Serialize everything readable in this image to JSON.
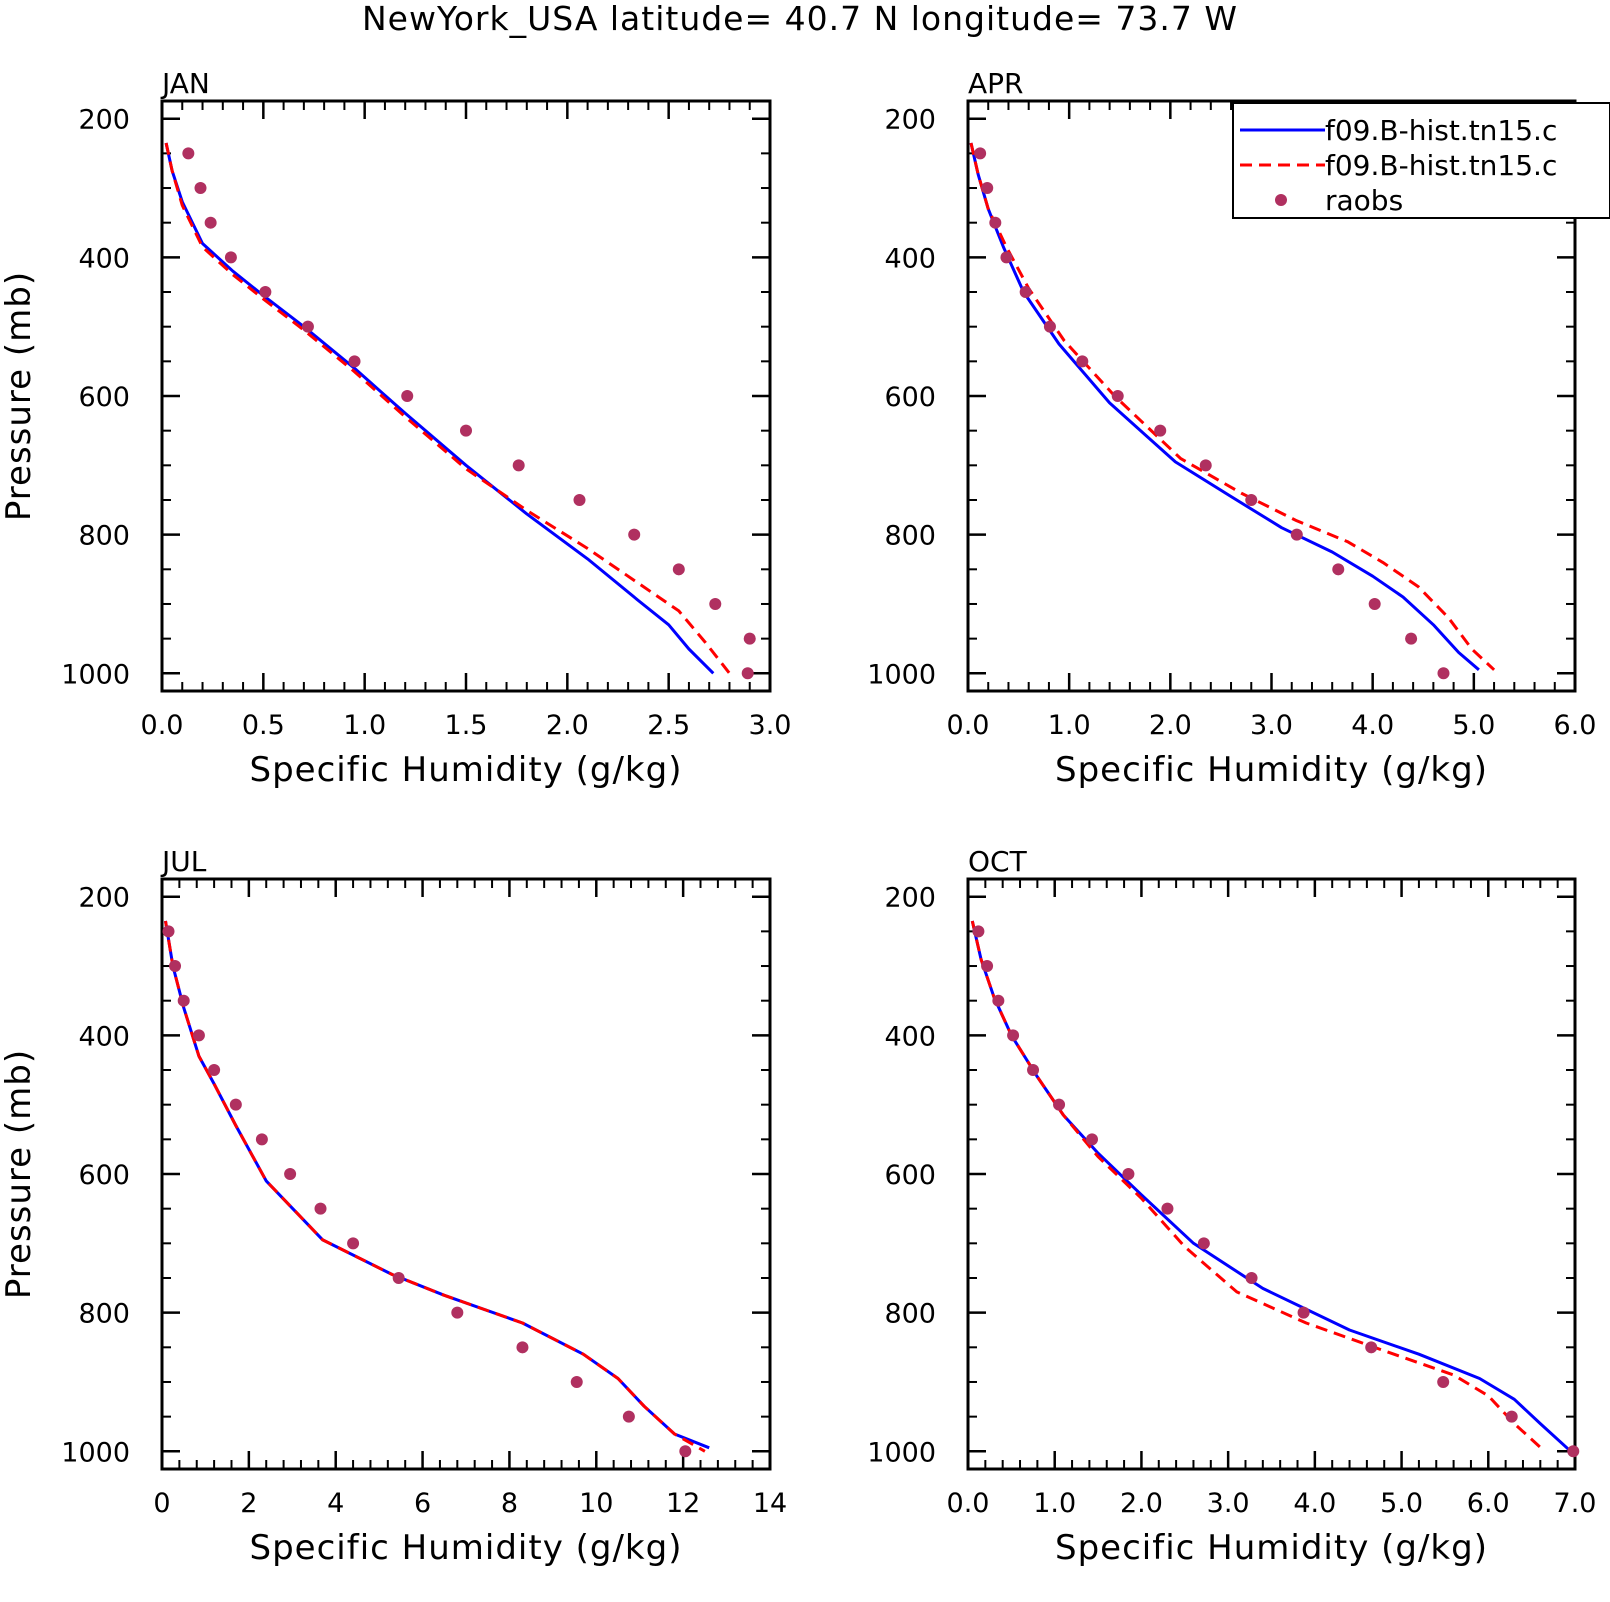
{
  "figure": {
    "title": "NewYork_USA  latitude= 40.7 N longitude= 73.7 W"
  },
  "legend": {
    "entries": [
      {
        "label": "f09.B-hist.tn15.c",
        "style": "solid",
        "color": "#0000ff"
      },
      {
        "label": "f09.B-hist.tn15.c",
        "style": "dashed",
        "color": "#ff0000"
      },
      {
        "label": "raobs",
        "style": "marker",
        "color": "#b03060"
      }
    ],
    "placement": "top-right"
  },
  "colors": {
    "series_solid": "#0000ff",
    "series_dashed": "#ff0000",
    "raobs": "#b03060",
    "axis": "#000000"
  },
  "chart_data": [
    {
      "type": "line",
      "title": "JAN",
      "xlabel": "Specific Humidity (g/kg)",
      "ylabel": "Pressure (mb)",
      "xlim": [
        0,
        3.0
      ],
      "ylim": [
        1000,
        200
      ],
      "y_inverted": true,
      "x_ticks": [
        "0.0",
        "0.5",
        "1.0",
        "1.5",
        "2.0",
        "2.5",
        "3.0"
      ],
      "y_ticks": [
        "200",
        "400",
        "600",
        "800",
        "1000"
      ],
      "series": [
        {
          "name": "f09.B-hist.tn15.c",
          "style": "solid",
          "x": [
            0.02,
            0.05,
            0.1,
            0.2,
            0.35,
            0.5,
            0.7,
            0.95,
            1.2,
            1.5,
            1.8,
            2.1,
            2.35,
            2.5,
            2.6,
            2.72
          ],
          "y": [
            235,
            275,
            320,
            380,
            420,
            455,
            500,
            560,
            625,
            700,
            770,
            835,
            895,
            930,
            965,
            1000
          ]
        },
        {
          "name": "f09.B-hist.tn15.c",
          "style": "dashed",
          "x": [
            0.02,
            0.05,
            0.1,
            0.2,
            0.35,
            0.5,
            0.7,
            0.95,
            1.2,
            1.5,
            1.8,
            2.1,
            2.35,
            2.55,
            2.68,
            2.8
          ],
          "y": [
            235,
            275,
            325,
            385,
            425,
            460,
            505,
            565,
            630,
            705,
            765,
            820,
            870,
            910,
            955,
            1000
          ]
        },
        {
          "name": "raobs",
          "style": "marker",
          "x": [
            0.13,
            0.19,
            0.24,
            0.34,
            0.51,
            0.72,
            0.95,
            1.21,
            1.5,
            1.76,
            2.06,
            2.33,
            2.55,
            2.73,
            2.9,
            2.89
          ],
          "y": [
            250,
            300,
            350,
            400,
            450,
            500,
            550,
            600,
            650,
            700,
            750,
            800,
            850,
            900,
            950,
            1000
          ]
        }
      ]
    },
    {
      "type": "line",
      "title": "APR",
      "xlabel": "Specific Humidity (g/kg)",
      "ylabel": "",
      "xlim": [
        0,
        6.0
      ],
      "ylim": [
        1000,
        200
      ],
      "y_inverted": true,
      "x_ticks": [
        "0.0",
        "1.0",
        "2.0",
        "3.0",
        "4.0",
        "5.0",
        "6.0"
      ],
      "y_ticks": [
        "200",
        "400",
        "600",
        "800",
        "1000"
      ],
      "series": [
        {
          "name": "f09.B-hist.tn15.c",
          "style": "solid",
          "x": [
            0.03,
            0.1,
            0.2,
            0.35,
            0.55,
            0.9,
            1.4,
            2.05,
            2.6,
            3.1,
            3.6,
            4.0,
            4.3,
            4.6,
            4.85,
            5.05
          ],
          "y": [
            235,
            280,
            330,
            385,
            450,
            525,
            610,
            695,
            745,
            790,
            825,
            860,
            890,
            930,
            970,
            995
          ]
        },
        {
          "name": "f09.B-hist.tn15.c",
          "style": "dashed",
          "x": [
            0.03,
            0.1,
            0.2,
            0.38,
            0.6,
            0.95,
            1.45,
            2.1,
            2.7,
            3.25,
            3.75,
            4.1,
            4.45,
            4.75,
            4.98,
            5.2
          ],
          "y": [
            235,
            280,
            330,
            385,
            445,
            520,
            600,
            690,
            740,
            780,
            810,
            840,
            875,
            920,
            965,
            995
          ]
        },
        {
          "name": "raobs",
          "style": "marker",
          "x": [
            0.12,
            0.19,
            0.27,
            0.38,
            0.57,
            0.81,
            1.13,
            1.48,
            1.9,
            2.35,
            2.8,
            3.25,
            3.66,
            4.02,
            4.38,
            4.7
          ],
          "y": [
            250,
            300,
            350,
            400,
            450,
            500,
            550,
            600,
            650,
            700,
            750,
            800,
            850,
            900,
            950,
            1000
          ]
        }
      ]
    },
    {
      "type": "line",
      "title": "JUL",
      "xlabel": "Specific Humidity (g/kg)",
      "ylabel": "Pressure (mb)",
      "xlim": [
        0,
        14
      ],
      "ylim": [
        1000,
        200
      ],
      "y_inverted": true,
      "x_ticks": [
        "0",
        "2",
        "4",
        "6",
        "8",
        "10",
        "12",
        "14"
      ],
      "y_ticks": [
        "200",
        "400",
        "600",
        "800",
        "1000"
      ],
      "series": [
        {
          "name": "f09.B-hist.tn15.c",
          "style": "solid",
          "x": [
            0.08,
            0.25,
            0.5,
            0.85,
            1.2,
            1.7,
            2.4,
            3.7,
            5.3,
            6.5,
            8.3,
            9.7,
            10.5,
            11.1,
            11.8,
            12.6
          ],
          "y": [
            235,
            300,
            360,
            430,
            470,
            530,
            610,
            695,
            745,
            775,
            815,
            860,
            895,
            935,
            975,
            995
          ]
        },
        {
          "name": "f09.B-hist.tn15.c",
          "style": "dashed",
          "x": [
            0.08,
            0.25,
            0.5,
            0.85,
            1.2,
            1.7,
            2.4,
            3.7,
            5.3,
            6.5,
            8.3,
            9.7,
            10.5,
            11.1,
            11.8,
            12.5
          ],
          "y": [
            235,
            300,
            360,
            430,
            470,
            530,
            610,
            695,
            745,
            775,
            815,
            860,
            895,
            935,
            975,
            1000
          ]
        },
        {
          "name": "raobs",
          "style": "marker",
          "x": [
            0.15,
            0.3,
            0.5,
            0.85,
            1.2,
            1.7,
            2.3,
            2.95,
            3.65,
            4.4,
            5.45,
            6.8,
            8.3,
            9.55,
            10.75,
            12.05
          ],
          "y": [
            250,
            300,
            350,
            400,
            450,
            500,
            550,
            600,
            650,
            700,
            750,
            800,
            850,
            900,
            950,
            1000
          ]
        }
      ]
    },
    {
      "type": "line",
      "title": "OCT",
      "xlabel": "Specific Humidity (g/kg)",
      "ylabel": "",
      "xlim": [
        0,
        7.0
      ],
      "ylim": [
        1000,
        200
      ],
      "y_inverted": true,
      "x_ticks": [
        "0.0",
        "1.0",
        "2.0",
        "3.0",
        "4.0",
        "5.0",
        "6.0",
        "7.0"
      ],
      "y_ticks": [
        "200",
        "400",
        "600",
        "800",
        "1000"
      ],
      "series": [
        {
          "name": "f09.B-hist.tn15.c",
          "style": "solid",
          "x": [
            0.05,
            0.15,
            0.3,
            0.5,
            0.8,
            1.1,
            1.5,
            2.0,
            2.6,
            3.4,
            4.4,
            5.2,
            5.9,
            6.3,
            6.6,
            6.95
          ],
          "y": [
            235,
            290,
            345,
            400,
            460,
            515,
            570,
            630,
            700,
            765,
            825,
            860,
            895,
            925,
            960,
            1000
          ]
        },
        {
          "name": "f09.B-hist.tn15.c",
          "style": "dashed",
          "x": [
            0.05,
            0.15,
            0.3,
            0.5,
            0.8,
            1.1,
            1.5,
            2.0,
            2.5,
            3.1,
            3.9,
            4.8,
            5.6,
            6.0,
            6.3,
            6.65
          ],
          "y": [
            235,
            290,
            345,
            400,
            460,
            515,
            575,
            635,
            705,
            770,
            815,
            855,
            890,
            920,
            960,
            1000
          ]
        },
        {
          "name": "raobs",
          "style": "marker",
          "x": [
            0.12,
            0.22,
            0.35,
            0.52,
            0.75,
            1.05,
            1.43,
            1.85,
            2.3,
            2.72,
            3.27,
            3.87,
            4.65,
            5.48,
            6.27,
            6.98
          ],
          "y": [
            250,
            300,
            350,
            400,
            450,
            500,
            550,
            600,
            650,
            700,
            750,
            800,
            850,
            900,
            950,
            1000
          ]
        }
      ]
    }
  ]
}
